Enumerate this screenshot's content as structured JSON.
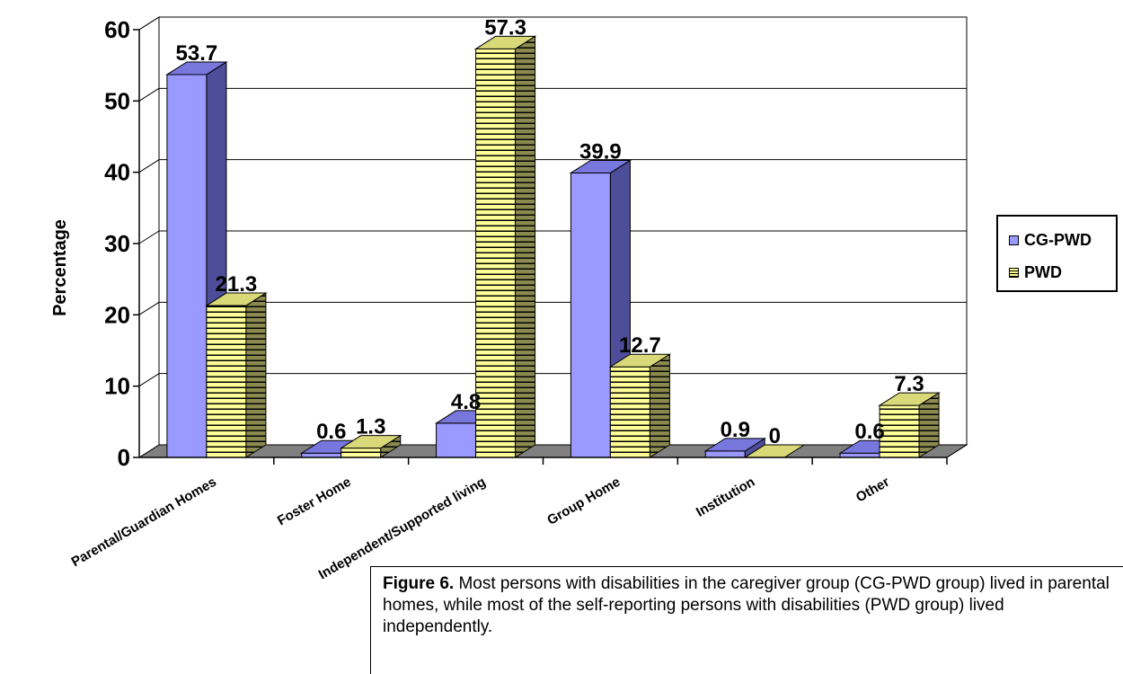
{
  "chart_data": {
    "type": "bar",
    "title": "",
    "xlabel": "",
    "ylabel": "Percentage",
    "ylim": [
      0,
      60
    ],
    "yticks": [
      0,
      10,
      20,
      30,
      40,
      50,
      60
    ],
    "categories": [
      "Parental/Guardian Homes",
      "Foster Home",
      "Independent/Supported living",
      "Group Home",
      "Institution",
      "Other"
    ],
    "series": [
      {
        "name": "CG-PWD",
        "values": [
          53.7,
          0.6,
          4.8,
          39.9,
          0.9,
          0.6
        ],
        "labels": [
          "53.7",
          "0.6",
          "4.8",
          "39.9",
          "0.9",
          "0.6"
        ],
        "color": "#9999FF"
      },
      {
        "name": "PWD",
        "values": [
          21.3,
          1.3,
          57.3,
          12.7,
          0,
          7.3
        ],
        "labels": [
          "21.3",
          "1.3",
          "57.3",
          "12.7",
          "0",
          "7.3"
        ],
        "color": "#FFFF99"
      }
    ],
    "grid": true,
    "legend_position": "right",
    "style": "3d-clustered"
  },
  "legend": {
    "items": [
      {
        "label": "CG-PWD",
        "color": "#9999FF",
        "pattern": "solid"
      },
      {
        "label": "PWD",
        "color": "#FFFF99",
        "pattern": "horizontal-stripes"
      }
    ]
  },
  "caption": {
    "label": "Figure 6.",
    "text": " Most persons with disabilities in the caregiver group (CG-PWD group) lived in parental homes, while most of the self-reporting persons with disabilities (PWD group) lived independently."
  }
}
